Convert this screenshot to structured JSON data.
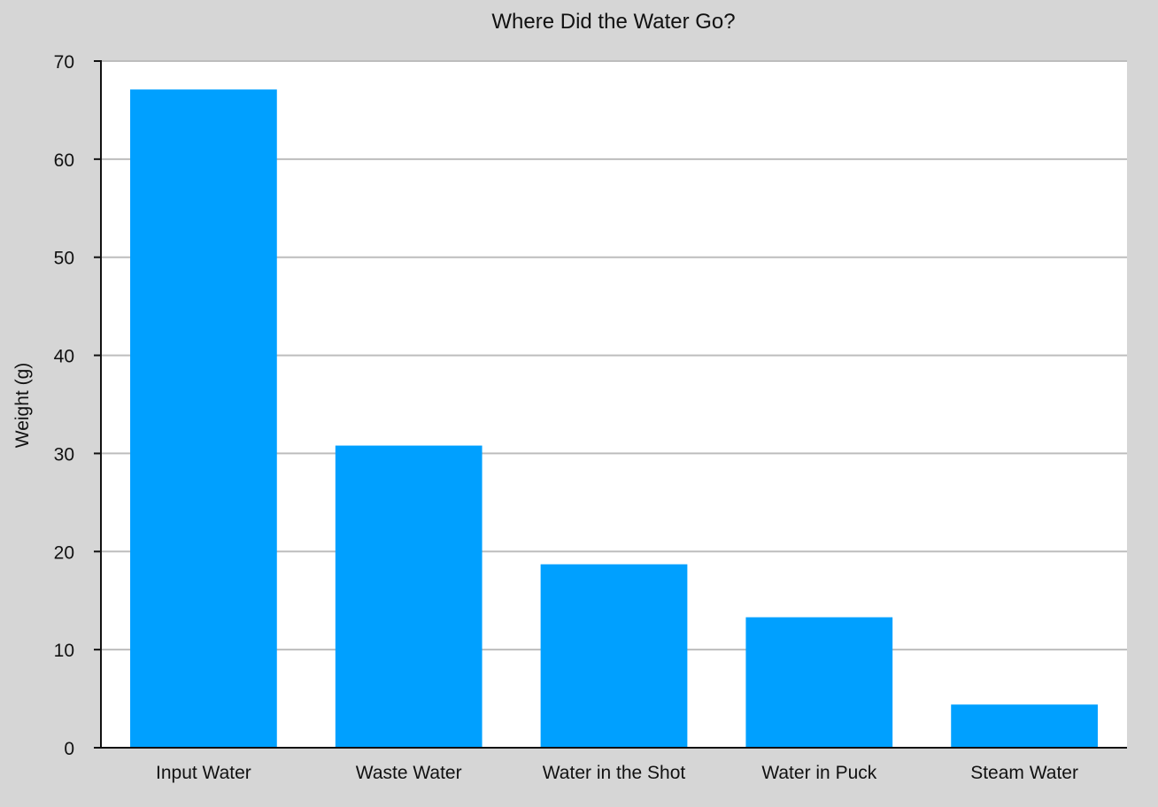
{
  "chart_data": {
    "type": "bar",
    "title": "Where Did the Water Go?",
    "xlabel": "",
    "ylabel": "Weight (g)",
    "categories": [
      "Input Water",
      "Waste Water",
      "Water in the Shot",
      "Water in Puck",
      "Steam Water"
    ],
    "values": [
      67.1,
      30.8,
      18.7,
      13.3,
      4.4
    ],
    "ylim": [
      0,
      70
    ],
    "yticks": [
      "0",
      "10",
      "20",
      "30",
      "40",
      "50",
      "60",
      "70"
    ],
    "grid": true,
    "legend": "none",
    "colors": {
      "bar": "#00a0ff",
      "background": "#d6d6d6",
      "plot_background": "#ffffff",
      "grid": "#bdbdbd",
      "axis": "#111111"
    }
  }
}
